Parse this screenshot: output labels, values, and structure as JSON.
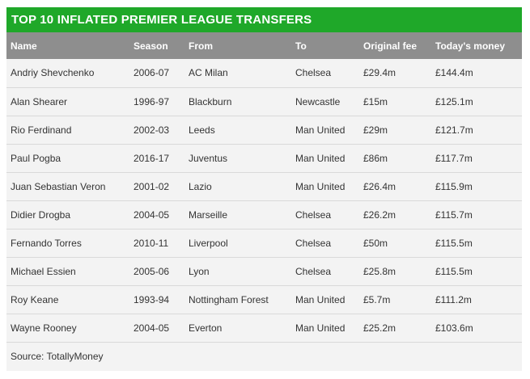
{
  "title": "TOP 10 INFLATED PREMIER LEAGUE TRANSFERS",
  "columns": [
    "Name",
    "Season",
    "From",
    "To",
    "Original fee",
    "Today's money"
  ],
  "rows": [
    [
      "Andriy Shevchenko",
      "2006-07",
      "AC Milan",
      "Chelsea",
      "£29.4m",
      "£144.4m"
    ],
    [
      "Alan Shearer",
      "1996-97",
      "Blackburn",
      "Newcastle",
      "£15m",
      "£125.1m"
    ],
    [
      "Rio Ferdinand",
      "2002-03",
      "Leeds",
      "Man United",
      "£29m",
      "£121.7m"
    ],
    [
      "Paul Pogba",
      "2016-17",
      "Juventus",
      "Man United",
      "£86m",
      "£117.7m"
    ],
    [
      "Juan Sebastian Veron",
      "2001-02",
      "Lazio",
      "Man United",
      "£26.4m",
      "£115.9m"
    ],
    [
      "Didier Drogba",
      "2004-05",
      "Marseille",
      "Chelsea",
      "£26.2m",
      "£115.7m"
    ],
    [
      "Fernando Torres",
      "2010-11",
      "Liverpool",
      "Chelsea",
      "£50m",
      "£115.5m"
    ],
    [
      "Michael Essien",
      "2005-06",
      "Lyon",
      "Chelsea",
      "£25.8m",
      "£115.5m"
    ],
    [
      "Roy Keane",
      "1993-94",
      "Nottingham Forest",
      "Man United",
      "£5.7m",
      "£111.2m"
    ],
    [
      "Wayne Rooney",
      "2004-05",
      "Everton",
      "Man United",
      "£25.2m",
      "£103.6m"
    ]
  ],
  "source": "Source: TotallyMoney",
  "colors": {
    "title_bar": "#1fa829",
    "header_bar": "#8e8e8e",
    "row_bg": "#f3f3f3",
    "row_divider": "#d9d9d9"
  }
}
